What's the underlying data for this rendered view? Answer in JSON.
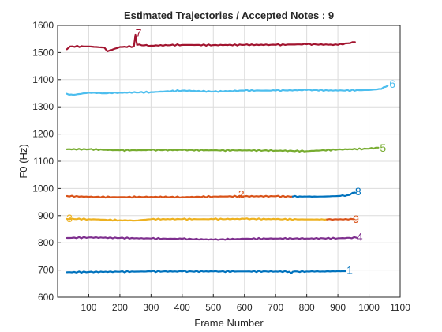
{
  "chart_data": {
    "type": "line",
    "title": "Estimated Trajectories / Accepted Notes : 9",
    "xlabel": "Frame Number",
    "ylabel": "F0 (Hz)",
    "xlim": [
      0,
      1100
    ],
    "ylim": [
      600,
      1600
    ],
    "xticks": [
      100,
      200,
      300,
      400,
      500,
      600,
      700,
      800,
      900,
      1000,
      1100
    ],
    "yticks": [
      600,
      700,
      800,
      900,
      1000,
      1100,
      1200,
      1300,
      1400,
      1500,
      1600
    ],
    "grid": true,
    "series": [
      {
        "name": "1",
        "color": "#0072bd",
        "points": [
          [
            30,
            692
          ],
          [
            100,
            693
          ],
          [
            200,
            694
          ],
          [
            300,
            695
          ],
          [
            400,
            695
          ],
          [
            500,
            695
          ],
          [
            600,
            695
          ],
          [
            700,
            695
          ],
          [
            745,
            694
          ],
          [
            750,
            688
          ],
          [
            755,
            694
          ],
          [
            800,
            695
          ],
          [
            850,
            695
          ],
          [
            925,
            696
          ]
        ],
        "label_at": [
          938,
          700
        ]
      },
      {
        "name": "2",
        "color": "#d95319",
        "points": [
          [
            30,
            972
          ],
          [
            100,
            969
          ],
          [
            200,
            968
          ],
          [
            300,
            969
          ],
          [
            400,
            968
          ],
          [
            500,
            970
          ],
          [
            600,
            971
          ],
          [
            700,
            971
          ],
          [
            755,
            970
          ]
        ],
        "label_at": [
          590,
          980
        ]
      },
      {
        "name": "3",
        "color": "#edb120",
        "points": [
          [
            30,
            888
          ],
          [
            100,
            887
          ],
          [
            200,
            883
          ],
          [
            250,
            882
          ],
          [
            300,
            887
          ],
          [
            400,
            887
          ],
          [
            500,
            887
          ],
          [
            600,
            888
          ],
          [
            700,
            887
          ],
          [
            800,
            886
          ],
          [
            865,
            886
          ]
        ],
        "label_at": [
          38,
          890
        ]
      },
      {
        "name": "4",
        "color": "#7e2f8e",
        "points": [
          [
            30,
            818
          ],
          [
            100,
            820
          ],
          [
            200,
            818
          ],
          [
            300,
            816
          ],
          [
            400,
            815
          ],
          [
            500,
            812
          ],
          [
            600,
            815
          ],
          [
            700,
            816
          ],
          [
            800,
            816
          ],
          [
            900,
            817
          ],
          [
            960,
            819
          ]
        ],
        "label_at": [
          970,
          822
        ]
      },
      {
        "name": "5",
        "color": "#77ac30",
        "points": [
          [
            30,
            1144
          ],
          [
            100,
            1144
          ],
          [
            200,
            1140
          ],
          [
            300,
            1141
          ],
          [
            400,
            1141
          ],
          [
            500,
            1140
          ],
          [
            600,
            1140
          ],
          [
            700,
            1139
          ],
          [
            800,
            1137
          ],
          [
            900,
            1143
          ],
          [
            1000,
            1146
          ],
          [
            1030,
            1150
          ]
        ],
        "label_at": [
          1045,
          1150
        ]
      },
      {
        "name": "6",
        "color": "#4dbeee",
        "points": [
          [
            30,
            1348
          ],
          [
            50,
            1344
          ],
          [
            100,
            1352
          ],
          [
            150,
            1350
          ],
          [
            200,
            1352
          ],
          [
            300,
            1354
          ],
          [
            400,
            1360
          ],
          [
            500,
            1356
          ],
          [
            600,
            1360
          ],
          [
            700,
            1360
          ],
          [
            800,
            1362
          ],
          [
            900,
            1360
          ],
          [
            1000,
            1362
          ],
          [
            1040,
            1366
          ],
          [
            1060,
            1378
          ]
        ],
        "label_at": [
          1075,
          1385
        ]
      },
      {
        "name": "7",
        "color": "#a2142f",
        "points": [
          [
            30,
            1512
          ],
          [
            40,
            1522
          ],
          [
            100,
            1522
          ],
          [
            150,
            1518
          ],
          [
            160,
            1504
          ],
          [
            175,
            1510
          ],
          [
            200,
            1520
          ],
          [
            245,
            1522
          ],
          [
            250,
            1565
          ],
          [
            255,
            1528
          ],
          [
            300,
            1525
          ],
          [
            400,
            1528
          ],
          [
            500,
            1527
          ],
          [
            600,
            1528
          ],
          [
            700,
            1528
          ],
          [
            800,
            1530
          ],
          [
            900,
            1528
          ],
          [
            955,
            1538
          ]
        ],
        "label_at": [
          260,
          1573
        ]
      },
      {
        "name": "8",
        "color": "#0072bd",
        "points": [
          [
            755,
            970
          ],
          [
            800,
            970
          ],
          [
            850,
            970
          ],
          [
            900,
            972
          ],
          [
            930,
            975
          ],
          [
            955,
            985
          ]
        ],
        "label_at": [
          965,
          990
        ]
      },
      {
        "name": "9",
        "color": "#d95319",
        "points": [
          [
            865,
            886
          ],
          [
            900,
            886
          ],
          [
            950,
            887
          ]
        ],
        "label_at": [
          958,
          888
        ]
      }
    ]
  }
}
